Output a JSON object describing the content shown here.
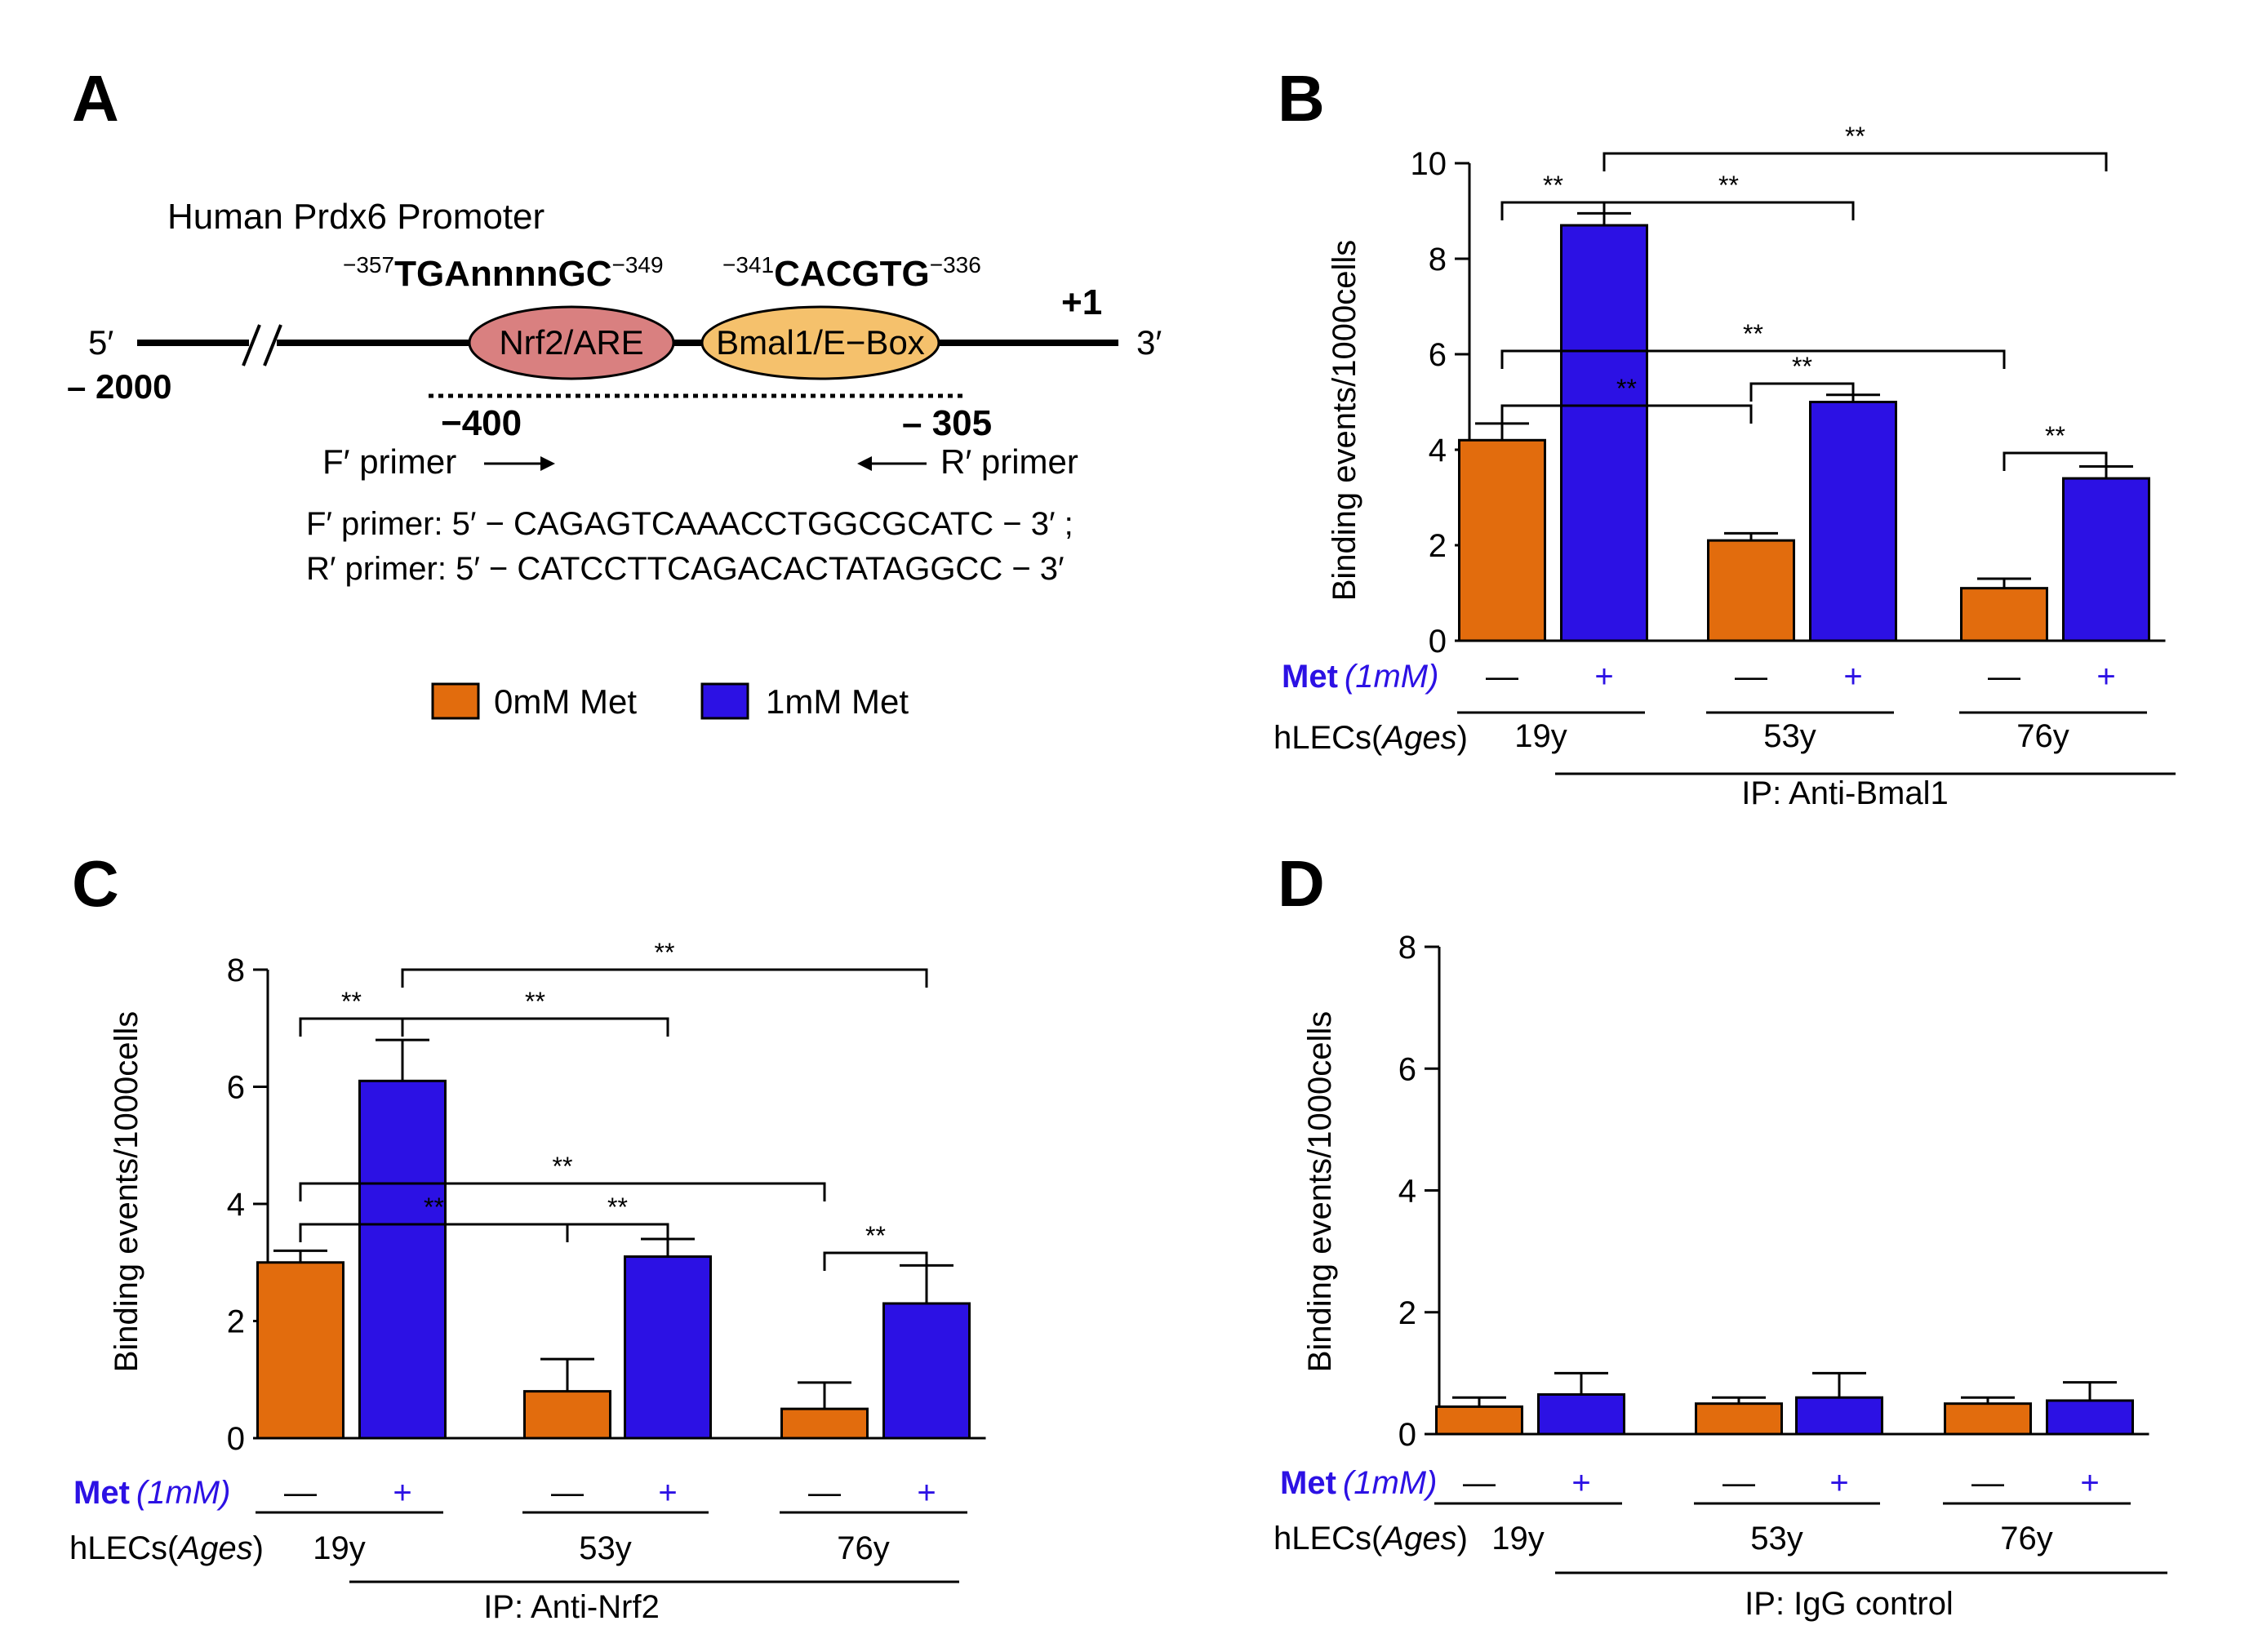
{
  "colors": {
    "met0": "#E26C0D",
    "met1": "#2C11E4",
    "met_label": "#2C11E4"
  },
  "panelA": {
    "letter": "A",
    "title": "Human  Prdx6 Promoter",
    "nrf2_site": {
      "sup_left": "−357",
      "seq": "TGAnnnnGC",
      "sup_right": "−349"
    },
    "ebox_site": {
      "sup_left": "−341",
      "seq": "CACGTG",
      "sup_right": "−336"
    },
    "plus1": "+1",
    "five_prime": "5′",
    "three_prime": "3′",
    "minus2000": "– 2000",
    "nrf2_label": "Nrf2/ARE",
    "bmal_label": "Bmal1/E−Box",
    "minus400": "−400",
    "minus305": "– 305",
    "f_primer_label": "F′ primer",
    "r_primer_label": "R′ primer",
    "f_primer_seq": "F′ primer: 5′ − CAGAGTCAAACCTGGCGCATC   − 3′ ;",
    "r_primer_seq": "R′ primer: 5′ − CATCCTTCAGACACTATAGGCC   − 3′",
    "nrf2_fill": "#D98080",
    "bmal_fill": "#F5C16C"
  },
  "legend": [
    "0mM Met",
    "1mM Met"
  ],
  "x_rows": {
    "met_bold": "Met",
    "met_italic": "(1mM)",
    "ages_prefix": "hLECs(",
    "ages_italic": "Ages",
    "ages_suffix": ")",
    "minus": "—",
    "plus": "+"
  },
  "chart_data": [
    {
      "panel": "B",
      "type": "bar",
      "ylabel": "Binding events/1000cells",
      "ylim": [
        0,
        10
      ],
      "yticks": [
        0,
        2,
        4,
        6,
        8,
        10
      ],
      "categories": [
        "19y",
        "53y",
        "76y"
      ],
      "series": [
        {
          "name": "0mM Met",
          "values": [
            4.2,
            2.1,
            1.1
          ],
          "errors": [
            0.35,
            0.15,
            0.2
          ]
        },
        {
          "name": "1mM Met",
          "values": [
            8.7,
            5.0,
            3.4
          ],
          "errors": [
            0.25,
            0.15,
            0.25
          ]
        }
      ],
      "ip_label": "IP:  Anti-Bmal1",
      "significance": [
        {
          "from": "19y 0mM Met",
          "to": "19y 1mM Met",
          "label": "**"
        },
        {
          "from": "19y 1mM Met",
          "to": "53y 1mM Met",
          "label": "**"
        },
        {
          "from": "19y 1mM Met",
          "to": "76y 1mM Met",
          "label": "**"
        },
        {
          "from": "19y 0mM Met",
          "to": "53y 0mM Met",
          "label": "**"
        },
        {
          "from": "19y 0mM Met",
          "to": "76y 0mM Met",
          "label": "**"
        },
        {
          "from": "53y 0mM Met",
          "to": "53y 1mM Met",
          "label": "**"
        },
        {
          "from": "76y 0mM Met",
          "to": "76y 1mM Met",
          "label": "**"
        }
      ]
    },
    {
      "panel": "C",
      "type": "bar",
      "ylabel": "Binding events/1000cells",
      "ylim": [
        0,
        8
      ],
      "yticks": [
        0,
        2,
        4,
        6,
        8
      ],
      "categories": [
        "19y",
        "53y",
        "76y"
      ],
      "series": [
        {
          "name": "0mM Met",
          "values": [
            3.0,
            0.8,
            0.5
          ],
          "errors": [
            0.2,
            0.55,
            0.45
          ]
        },
        {
          "name": "1mM Met",
          "values": [
            6.1,
            3.1,
            2.3
          ],
          "errors": [
            0.7,
            0.3,
            0.65
          ]
        }
      ],
      "ip_label": "IP:  Anti-Nrf2",
      "significance": [
        {
          "from": "19y 0mM Met",
          "to": "19y 1mM Met",
          "label": "**"
        },
        {
          "from": "19y 1mM Met",
          "to": "53y 1mM Met",
          "label": "**"
        },
        {
          "from": "19y 1mM Met",
          "to": "76y 1mM Met",
          "label": "**"
        },
        {
          "from": "19y 0mM Met",
          "to": "53y 0mM Met",
          "label": "**"
        },
        {
          "from": "19y 0mM Met",
          "to": "76y 0mM Met",
          "label": "**"
        },
        {
          "from": "53y 0mM Met",
          "to": "53y 1mM Met",
          "label": "**"
        },
        {
          "from": "76y 0mM Met",
          "to": "76y 1mM Met",
          "label": "**"
        }
      ]
    },
    {
      "panel": "D",
      "type": "bar",
      "ylabel": "Binding events/1000cells",
      "ylim": [
        0,
        8
      ],
      "yticks": [
        0,
        2,
        4,
        6,
        8
      ],
      "categories": [
        "19y",
        "53y",
        "76y"
      ],
      "series": [
        {
          "name": "0mM Met",
          "values": [
            0.45,
            0.5,
            0.5
          ],
          "errors": [
            0.15,
            0.1,
            0.1
          ]
        },
        {
          "name": "1mM Met",
          "values": [
            0.65,
            0.6,
            0.55
          ],
          "errors": [
            0.35,
            0.4,
            0.3
          ]
        }
      ],
      "ip_label": "IP:  IgG  control",
      "significance": []
    }
  ]
}
